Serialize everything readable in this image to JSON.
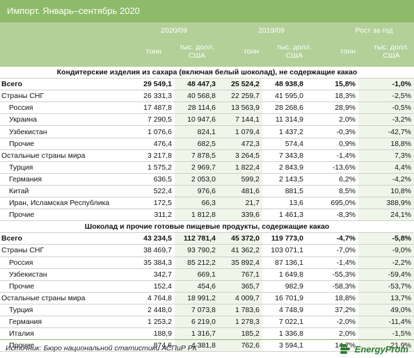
{
  "title": "Импорт. Январь–сентябрь 2020",
  "header": {
    "period_1": "2020/09",
    "period_2": "2019/09",
    "growth": "Рост за год",
    "unit_tons": "тонн",
    "unit_usd_line1": "тыс. долл.",
    "unit_usd_line2": "США"
  },
  "sections": [
    {
      "title": "Кондитерские изделия из сахара (включая белый шоколад), не содержащие какао",
      "rows": [
        {
          "label": "Всего",
          "kind": "tot",
          "v": [
            "29 549,1",
            "48 447,3",
            "25 524,2",
            "48 938,8",
            "15,8%",
            "-1,0%"
          ]
        },
        {
          "label": "Страны СНГ",
          "kind": "grp",
          "v": [
            "26 331,3",
            "40 568,8",
            "22 259,7",
            "41 595,0",
            "18,3%",
            "-2,5%"
          ]
        },
        {
          "label": "Россия",
          "kind": "sub",
          "v": [
            "17 487,8",
            "28 114,6",
            "13 563,9",
            "28 268,6",
            "28,9%",
            "-0,5%"
          ]
        },
        {
          "label": "Украина",
          "kind": "sub",
          "v": [
            "7 290,5",
            "10 947,6",
            "7 144,1",
            "11 314,9",
            "2,0%",
            "-3,2%"
          ]
        },
        {
          "label": "Узбекистан",
          "kind": "sub",
          "v": [
            "1 076,6",
            "824,1",
            "1 079,4",
            "1 437,2",
            "-0,3%",
            "-42,7%"
          ]
        },
        {
          "label": "Прочие",
          "kind": "sub",
          "v": [
            "476,4",
            "682,5",
            "472,3",
            "574,4",
            "0,9%",
            "18,8%"
          ]
        },
        {
          "label": "Остальные страны мира",
          "kind": "grp",
          "v": [
            "3 217,8",
            "7 878,5",
            "3 264,5",
            "7 343,8",
            "-1,4%",
            "7,3%"
          ]
        },
        {
          "label": "Турция",
          "kind": "sub",
          "v": [
            "1 575,2",
            "2 969,7",
            "1 822,4",
            "2 843,9",
            "-13,6%",
            "4,4%"
          ]
        },
        {
          "label": "Германия",
          "kind": "sub",
          "v": [
            "636,5",
            "2 053,0",
            "599,2",
            "2 143,5",
            "6,2%",
            "-4,2%"
          ]
        },
        {
          "label": "Китай",
          "kind": "sub",
          "v": [
            "522,4",
            "976,6",
            "481,6",
            "881,5",
            "8,5%",
            "10,8%"
          ]
        },
        {
          "label": "Иран, Исламская Республика",
          "kind": "sub",
          "v": [
            "172,5",
            "66,3",
            "21,7",
            "13,6",
            "695,0%",
            "388,9%"
          ]
        },
        {
          "label": "Прочие",
          "kind": "sub",
          "v": [
            "311,2",
            "1 812,8",
            "339,6",
            "1 461,3",
            "-8,3%",
            "24,1%"
          ]
        }
      ]
    },
    {
      "title": "Шоколад и прочие готовые пищевые продукты, содержащие какао",
      "rows": [
        {
          "label": "Всего",
          "kind": "tot",
          "v": [
            "43 234,5",
            "112 781,4",
            "45 372,0",
            "119 773,0",
            "-4,7%",
            "-5,8%"
          ]
        },
        {
          "label": "Страны СНГ",
          "kind": "grp",
          "v": [
            "38 469,7",
            "93 790,2",
            "41 362,2",
            "103 071,1",
            "-7,0%",
            "-9,0%"
          ]
        },
        {
          "label": "Россия",
          "kind": "sub",
          "v": [
            "35 384,3",
            "85 212,2",
            "35 892,4",
            "87 136,1",
            "-1,4%",
            "-2,2%"
          ]
        },
        {
          "label": "Узбекистан",
          "kind": "sub",
          "v": [
            "342,7",
            "669,1",
            "767,1",
            "1 649,8",
            "-55,3%",
            "-59,4%"
          ]
        },
        {
          "label": "Прочие",
          "kind": "sub",
          "v": [
            "152,4",
            "454,6",
            "365,7",
            "982,9",
            "-58,3%",
            "-53,7%"
          ]
        },
        {
          "label": "Остальные страны мира",
          "kind": "grp",
          "v": [
            "4 764,8",
            "18 991,2",
            "4 009,7",
            "16 701,9",
            "18,8%",
            "13,7%"
          ]
        },
        {
          "label": "Турция",
          "kind": "sub",
          "v": [
            "2 448,0",
            "7 073,8",
            "1 783,6",
            "4 748,9",
            "37,2%",
            "49,0%"
          ]
        },
        {
          "label": "Германия",
          "kind": "sub",
          "v": [
            "1 253,2",
            "6 219,0",
            "1 278,3",
            "7 022,1",
            "-2,0%",
            "-11,4%"
          ]
        },
        {
          "label": "Италия",
          "kind": "sub",
          "v": [
            "188,9",
            "1 316,7",
            "185,2",
            "1 336,8",
            "2,0%",
            "-1,5%"
          ]
        },
        {
          "label": "Прочие",
          "kind": "sub",
          "v": [
            "874,6",
            "4 381,8",
            "762,6",
            "3 594,1",
            "14,7%",
            "21,9%"
          ]
        }
      ]
    }
  ],
  "footer": {
    "source": "Источник: Бюро национальной статистики АСПиР РК",
    "logo_text": "EnergyProm",
    "logo_color": "#2e7d32"
  }
}
